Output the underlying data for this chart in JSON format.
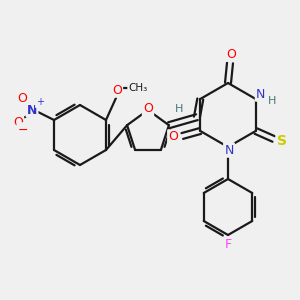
{
  "background_color": "#f0f0f0",
  "line_color": "#1a1a1a",
  "line_width": 1.6,
  "atom_colors": {
    "O": "#ff0000",
    "N": "#3333cc",
    "S": "#cccc00",
    "F": "#ff44ff",
    "H": "#447777",
    "NO2_N": "#3333cc",
    "NO2_O": "#ff0000",
    "furan_O": "#ff0000"
  }
}
